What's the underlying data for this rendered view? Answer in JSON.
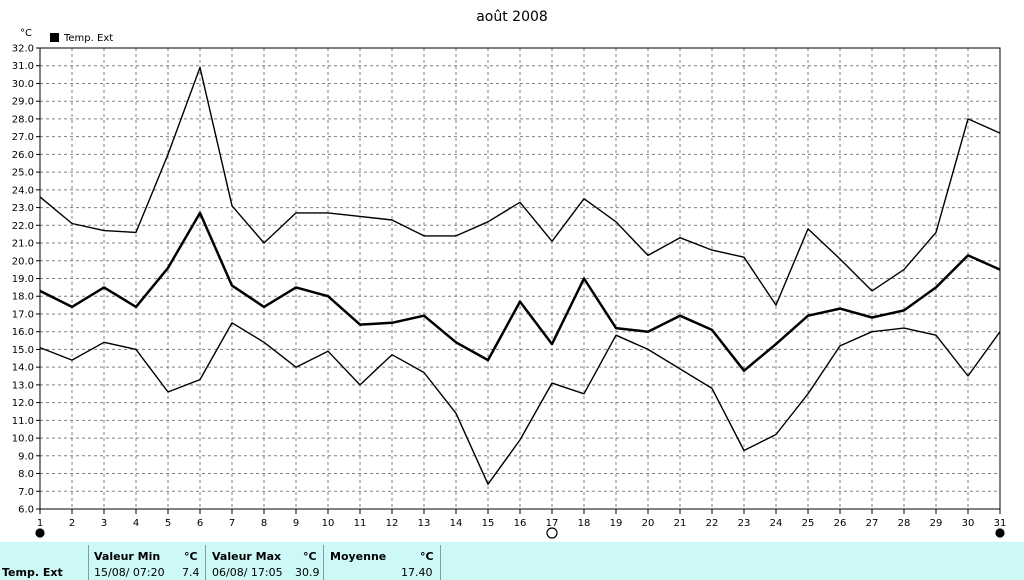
{
  "chart_data": {
    "type": "line",
    "title": "août 2008",
    "ylabel": "°C",
    "ylim": [
      6,
      32
    ],
    "y_step": 1,
    "grid": true,
    "legend": {
      "placement": "top-left",
      "entries": [
        "Temp. Ext"
      ]
    },
    "x": [
      1,
      2,
      3,
      4,
      5,
      6,
      7,
      8,
      9,
      10,
      11,
      12,
      13,
      14,
      15,
      16,
      17,
      18,
      19,
      20,
      21,
      22,
      23,
      24,
      25,
      26,
      27,
      28,
      29,
      30,
      31
    ],
    "series": [
      {
        "role": "max",
        "color": "#000000",
        "values": [
          23.6,
          22.1,
          21.7,
          21.6,
          26.0,
          30.9,
          23.1,
          21.0,
          22.7,
          22.7,
          22.5,
          22.3,
          21.4,
          21.4,
          22.2,
          23.3,
          21.1,
          23.5,
          22.2,
          20.3,
          21.3,
          20.6,
          20.2,
          17.5,
          21.8,
          20.1,
          18.3,
          19.5,
          21.6,
          28.0,
          27.2
        ]
      },
      {
        "role": "mean",
        "color": "#000000",
        "values": [
          18.3,
          17.4,
          18.5,
          17.4,
          19.6,
          22.7,
          18.6,
          17.4,
          18.5,
          18.0,
          16.4,
          16.5,
          16.9,
          15.4,
          14.4,
          17.7,
          15.3,
          19.0,
          16.2,
          16.0,
          16.9,
          16.1,
          13.8,
          15.3,
          16.9,
          17.3,
          16.8,
          17.2,
          18.5,
          20.3,
          19.5
        ]
      },
      {
        "role": "min",
        "color": "#000000",
        "values": [
          15.1,
          14.4,
          15.4,
          15.0,
          12.6,
          13.3,
          16.5,
          15.4,
          14.0,
          14.9,
          13.0,
          14.7,
          13.7,
          11.4,
          7.4,
          9.9,
          13.1,
          12.5,
          15.8,
          15.0,
          13.9,
          12.8,
          9.3,
          10.2,
          12.5,
          15.2,
          16.0,
          16.2,
          15.8,
          13.5,
          16.0
        ]
      }
    ],
    "moon_phases": [
      {
        "day": 1,
        "phase": "new"
      },
      {
        "day": 17,
        "phase": "full"
      },
      {
        "day": 31,
        "phase": "new"
      }
    ]
  },
  "stats": {
    "row_label": "Temp. Ext",
    "min": {
      "label": "Valeur Min",
      "unit": "°C",
      "datetime": "15/08/  07:20",
      "value": "7.4"
    },
    "max": {
      "label": "Valeur Max",
      "unit": "°C",
      "datetime": "06/08/  17:05",
      "value": "30.9"
    },
    "mean": {
      "label": "Moyenne",
      "unit": "°C",
      "value": "17.40"
    }
  }
}
